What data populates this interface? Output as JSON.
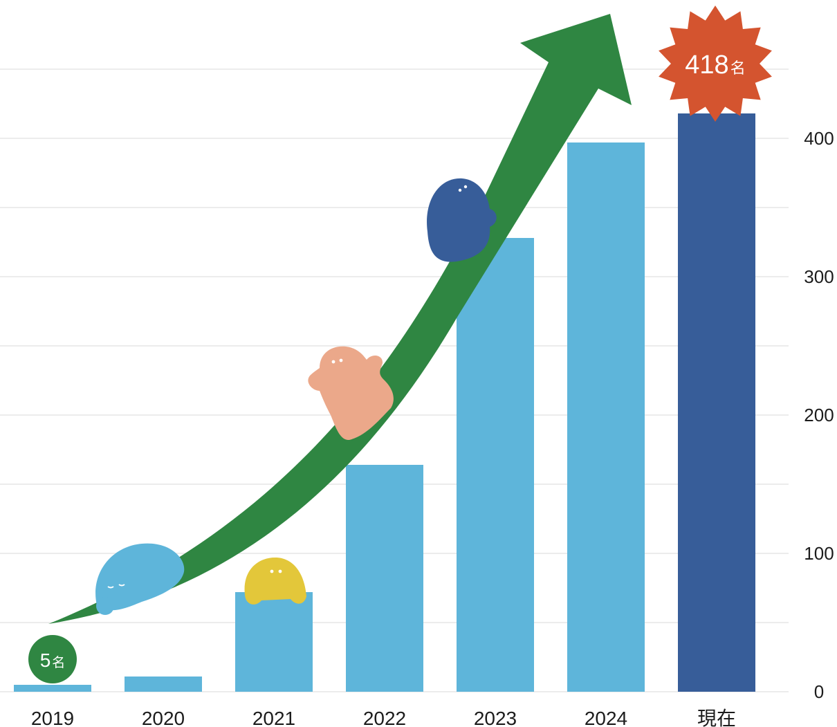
{
  "chart_data": {
    "type": "bar",
    "categories": [
      "2019",
      "2020",
      "2021",
      "2022",
      "2023",
      "2024",
      "現在"
    ],
    "values": [
      5,
      11,
      72,
      164,
      328,
      397,
      418
    ],
    "ylim": [
      0,
      450
    ],
    "y_ticks": [
      "0",
      "100",
      "200",
      "300",
      "400"
    ],
    "y_axis_position": "right",
    "grid": true,
    "highlight_index": 6,
    "annotations": [
      {
        "category": "2019",
        "value": "5",
        "unit": "名"
      },
      {
        "category": "現在",
        "value": "418",
        "unit": "名"
      }
    ],
    "colors": {
      "bar": "#5eb5da",
      "bar_highlight": "#375d99",
      "arrow": "#2f8642",
      "start_badge": "#2f8642",
      "end_badge": "#d4542f",
      "grid": "#ececec"
    }
  }
}
